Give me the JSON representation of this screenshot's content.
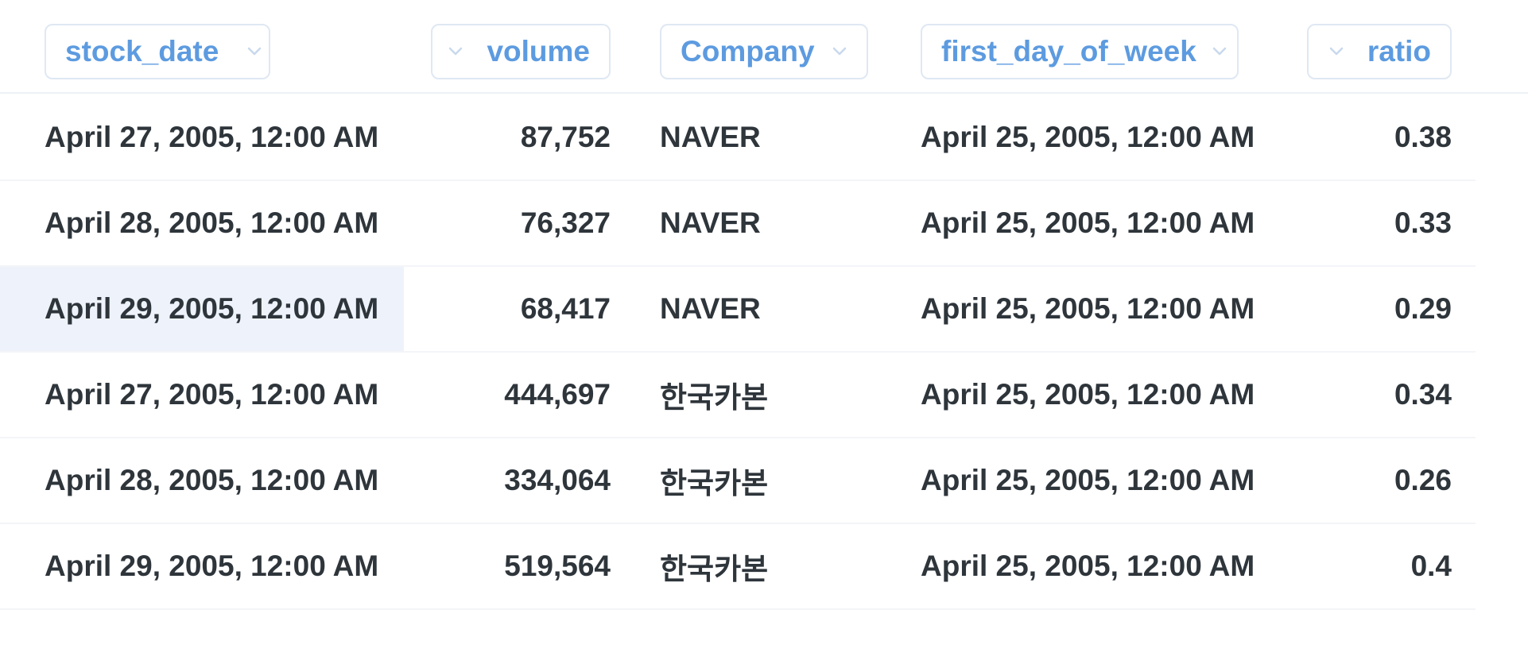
{
  "columns": [
    {
      "label": "stock_date",
      "icon": "chevron-down-icon"
    },
    {
      "label": "volume",
      "icon": "chevron-down-icon"
    },
    {
      "label": "Company",
      "icon": "chevron-down-icon"
    },
    {
      "label": "first_day_of_week",
      "icon": "chevron-down-icon"
    },
    {
      "label": "ratio",
      "icon": "chevron-down-icon"
    }
  ],
  "rows": [
    {
      "stock_date": "April 27, 2005, 12:00 AM",
      "volume": "87,752",
      "company": "NAVER",
      "first_day_of_week": "April 25, 2005, 12:00 AM",
      "ratio": "0.38"
    },
    {
      "stock_date": "April 28, 2005, 12:00 AM",
      "volume": "76,327",
      "company": "NAVER",
      "first_day_of_week": "April 25, 2005, 12:00 AM",
      "ratio": "0.33"
    },
    {
      "stock_date": "April 29, 2005, 12:00 AM",
      "volume": "68,417",
      "company": "NAVER",
      "first_day_of_week": "April 25, 2005, 12:00 AM",
      "ratio": "0.29"
    },
    {
      "stock_date": "April 27, 2005, 12:00 AM",
      "volume": "444,697",
      "company": "한국카본",
      "first_day_of_week": "April 25, 2005, 12:00 AM",
      "ratio": "0.34"
    },
    {
      "stock_date": "April 28, 2005, 12:00 AM",
      "volume": "334,064",
      "company": "한국카본",
      "first_day_of_week": "April 25, 2005, 12:00 AM",
      "ratio": "0.26"
    },
    {
      "stock_date": "April 29, 2005, 12:00 AM",
      "volume": "519,564",
      "company": "한국카본",
      "first_day_of_week": "April 25, 2005, 12:00 AM",
      "ratio": "0.4"
    }
  ],
  "colors": {
    "header_text": "#5d9be0",
    "cell_text": "#2e353b",
    "highlight": "#eef3fb"
  }
}
